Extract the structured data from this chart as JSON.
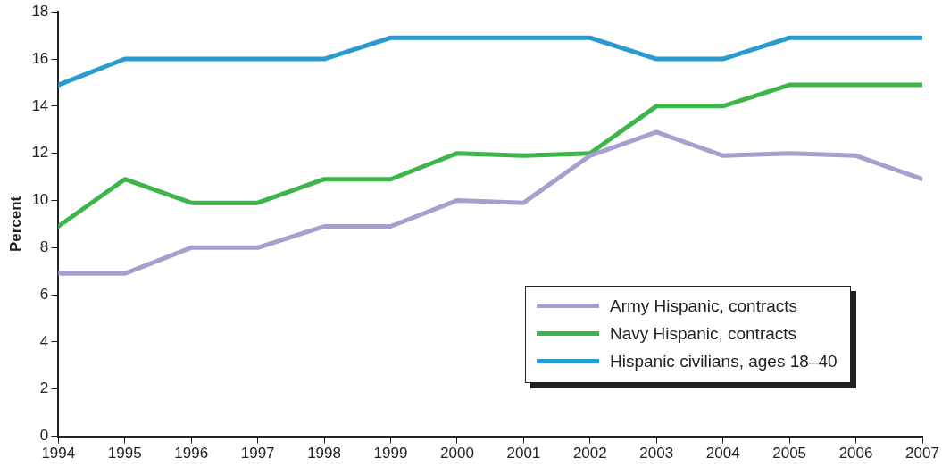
{
  "chart_data": {
    "type": "line",
    "ylabel": "Percent",
    "x": [
      1994,
      1995,
      1996,
      1997,
      1998,
      1999,
      2000,
      2001,
      2002,
      2003,
      2004,
      2005,
      2006,
      2007
    ],
    "xlim": [
      1994,
      2007
    ],
    "xticks": [
      1994,
      1995,
      1996,
      1997,
      1998,
      1999,
      2000,
      2001,
      2002,
      2003,
      2004,
      2005,
      2006,
      2007
    ],
    "ylim": [
      0,
      18
    ],
    "yticks": [
      0,
      2,
      4,
      6,
      8,
      10,
      12,
      14,
      16,
      18
    ],
    "grid": false,
    "legend": "bottom right",
    "marker": "none",
    "line_style": "solid",
    "series": [
      {
        "name": "Army Hispanic, contracts",
        "color": "#a99fcf",
        "values": [
          6.9,
          6.9,
          8,
          8,
          8.9,
          8.9,
          10,
          9.9,
          11.9,
          12.9,
          11.9,
          12,
          11.9,
          10.9
        ]
      },
      {
        "name": "Navy Hispanic, contracts",
        "color": "#3db54a",
        "values": [
          8.9,
          10.9,
          9.9,
          9.9,
          10.9,
          10.9,
          12,
          11.9,
          12,
          14,
          14,
          14.9,
          14.9,
          14.9
        ]
      },
      {
        "name": "Hispanic civilians, ages 18–40",
        "color": "#2a9bd0",
        "values": [
          14.9,
          16,
          16,
          16,
          16,
          16.9,
          16.9,
          16.9,
          16.9,
          16,
          16,
          16.9,
          16.9,
          16.9
        ]
      }
    ]
  }
}
